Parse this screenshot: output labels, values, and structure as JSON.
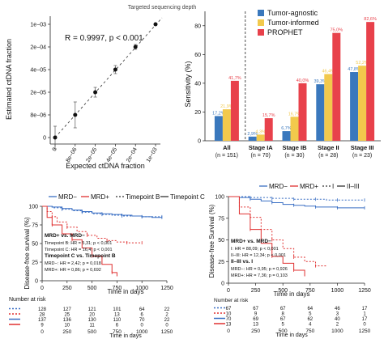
{
  "chart_data": [
    {
      "type": "scatter",
      "top_label": "Targeted sequencing depth",
      "annotation": "R = 0.9997, p < 0.001",
      "xlabel": "Expected ctDNA fraction",
      "ylabel": "Estimated ctDNA fraction",
      "x_ticks": [
        "0",
        "8e−06",
        "2e−05",
        "4e−05",
        "2e−04",
        "1e−03"
      ],
      "y_ticks": [
        "0",
        "8e−06",
        "2e−05",
        "4e−05",
        "2e−04",
        "1e−03"
      ],
      "points": [
        {
          "x": "0",
          "y": "0"
        },
        {
          "x": "8e−06",
          "y": "8e−06"
        },
        {
          "x": "2e−05",
          "y": "2e−05"
        },
        {
          "x": "4e−05",
          "y": "4e−05"
        },
        {
          "x": "2e−04",
          "y": "2e−04"
        },
        {
          "x": "1e−03",
          "y": "1e−03"
        }
      ]
    },
    {
      "type": "bar",
      "ylabel": "Sensitivity (%)",
      "ylim": [
        0,
        90
      ],
      "y_ticks": [
        0,
        20,
        40,
        60,
        80
      ],
      "legend_position": "top-right",
      "categories": [
        {
          "label": "All",
          "n": "(n = 151)"
        },
        {
          "label": "Stage IA",
          "n": "(n = 70)"
        },
        {
          "label": "Stage IB",
          "n": "(n = 30)"
        },
        {
          "label": "Stage II",
          "n": "(n = 28)"
        },
        {
          "label": "Stage III",
          "n": "(n = 23)"
        }
      ],
      "series": [
        {
          "name": "Tumor-agnostic",
          "color": "#3a78bd",
          "values": [
            17.2,
            2.9,
            6.7,
            39.3,
            47.8
          ],
          "labels": [
            "17,2%",
            "2,9%",
            "6,7%",
            "39,3%",
            "47,8%"
          ]
        },
        {
          "name": "Tumor-informed",
          "color": "#f2c94c",
          "values": [
            21.9,
            4.3,
            16.7,
            46.4,
            52.2
          ],
          "labels": [
            "21,9%",
            "4,3%",
            "16,7%",
            "46,4%",
            "52,2%"
          ]
        },
        {
          "name": "PROPHET",
          "color": "#e8414b",
          "values": [
            41.7,
            15.7,
            40.0,
            75.0,
            82.6
          ],
          "labels": [
            "41,7%",
            "15,7%",
            "40,0%",
            "75,0%",
            "82,6%"
          ]
        }
      ]
    },
    {
      "type": "line",
      "legend": [
        {
          "name": "MRD−",
          "color": "#3a6fc4",
          "dash": "solid"
        },
        {
          "name": "MRD+",
          "color": "#e03030",
          "dash": "solid"
        },
        {
          "name": "Timepoint B",
          "color": "#333333",
          "dash": "dotted"
        },
        {
          "name": "Timepoint C",
          "color": "#333333",
          "dash": "solid"
        }
      ],
      "ylabel": "Disease-free survival (%)",
      "xlabel": "Time in days",
      "xlim": [
        0,
        1250
      ],
      "ylim": [
        0,
        100
      ],
      "x_ticks": [
        0,
        250,
        500,
        750,
        1000,
        1250
      ],
      "y_ticks": [
        0,
        25,
        50,
        75,
        100
      ],
      "annotations": [
        {
          "text": "MRD+ vs. MRD−",
          "bold": true
        },
        {
          "text": "Timepoint B: HR = 5,31; p < 0,001",
          "bold": false
        },
        {
          "text": "Timepoint C: HR = 16,4; p < 0,001",
          "bold": false
        },
        {
          "text": "Timepoint C vs. Timepoint B",
          "bold": true
        },
        {
          "text": "MRD−: HR = 2,42; p = 0,018",
          "bold": false
        },
        {
          "text": "MRD+: HR = 0,86; p = 0,692",
          "bold": false
        }
      ],
      "series": [
        {
          "name": "MRD− Timepoint B",
          "color": "#3a6fc4",
          "dash": "dotted",
          "x": [
            0,
            100,
            200,
            300,
            400,
            500,
            600,
            700,
            800,
            900,
            1000,
            1100,
            1200
          ],
          "y": [
            100,
            98,
            96,
            94,
            92,
            90,
            89,
            88,
            87,
            87,
            86,
            86,
            86
          ]
        },
        {
          "name": "MRD− Timepoint C",
          "color": "#3a6fc4",
          "dash": "solid",
          "x": [
            0,
            100,
            200,
            300,
            400,
            500,
            600,
            700,
            800,
            900,
            1000,
            1100,
            1200
          ],
          "y": [
            100,
            99,
            97,
            95,
            93,
            91,
            90,
            89,
            88,
            87,
            86,
            85,
            85
          ]
        },
        {
          "name": "MRD+ Timepoint B",
          "color": "#e03030",
          "dash": "dotted",
          "x": [
            0,
            50,
            100,
            150,
            250,
            350,
            450,
            550,
            650,
            750,
            850,
            950,
            1000
          ],
          "y": [
            100,
            93,
            86,
            79,
            72,
            66,
            61,
            57,
            54,
            52,
            51,
            51,
            51
          ]
        },
        {
          "name": "MRD+ Timepoint C",
          "color": "#e03030",
          "dash": "solid",
          "x": [
            0,
            50,
            100,
            200,
            300,
            400,
            500,
            600,
            700,
            750
          ],
          "y": [
            100,
            85,
            75,
            63,
            55,
            44,
            33,
            22,
            11,
            6
          ]
        }
      ],
      "risk_table": {
        "title": "Number at risk",
        "rows": [
          {
            "color": "#3a6fc4",
            "dash": "dotted",
            "values": [
              "128",
              "127",
              "121",
              "101",
              "64",
              "22"
            ]
          },
          {
            "color": "#e03030",
            "dash": "dotted",
            "values": [
              "28",
              "25",
              "20",
              "13",
              "6",
              "2"
            ]
          },
          {
            "color": "#3a6fc4",
            "dash": "solid",
            "values": [
              "137",
              "136",
              "130",
              "110",
              "70",
              "22"
            ]
          },
          {
            "color": "#e03030",
            "dash": "solid",
            "values": [
              "9",
              "10",
              "11",
              "6",
              "0",
              "0"
            ]
          }
        ],
        "x_ticks": [
          "0",
          "250",
          "500",
          "750",
          "1000",
          "1250"
        ],
        "xlabel": "Time in days"
      }
    },
    {
      "type": "line",
      "legend": [
        {
          "name": "MRD−",
          "color": "#3a6fc4",
          "dash": "solid"
        },
        {
          "name": "MRD+",
          "color": "#e03030",
          "dash": "solid"
        },
        {
          "name": "I",
          "color": "#333333",
          "dash": "dotted"
        },
        {
          "name": "II–III",
          "color": "#333333",
          "dash": "solid"
        }
      ],
      "ylabel": "Disease-free Survival (%)",
      "xlabel": "Time in days",
      "xlim": [
        0,
        1250
      ],
      "ylim": [
        0,
        100
      ],
      "x_ticks": [
        0,
        250,
        500,
        750,
        1000,
        1250
      ],
      "y_ticks": [
        0,
        25,
        50,
        75,
        100
      ],
      "annotations": [
        {
          "text": "MRD+ vs. MRD−",
          "bold": true
        },
        {
          "text": "I: HR = 88,09; p < 0,001",
          "bold": false
        },
        {
          "text": "II–III: HR = 12,34; p < 0,001",
          "bold": false
        },
        {
          "text": "II–III vs. I",
          "bold": true
        },
        {
          "text": "MRD−: HR = 0,95; p = 0,926",
          "bold": false
        },
        {
          "text": "MRD+: HR = 7,36; p = 0,103",
          "bold": false
        }
      ],
      "series": [
        {
          "name": "MRD− I",
          "color": "#3a6fc4",
          "dash": "dotted",
          "x": [
            0,
            100,
            200,
            300,
            400,
            500,
            600,
            700,
            800,
            900,
            1000,
            1100,
            1250
          ],
          "y": [
            100,
            100,
            99,
            99,
            98,
            98,
            97,
            97,
            97,
            96,
            96,
            96,
            96
          ]
        },
        {
          "name": "MRD− II–III",
          "color": "#3a6fc4",
          "dash": "solid",
          "x": [
            0,
            100,
            200,
            300,
            400,
            500,
            600,
            700,
            800,
            900,
            1000,
            1100,
            1250
          ],
          "y": [
            100,
            99,
            97,
            95,
            93,
            91,
            90,
            89,
            88,
            88,
            87,
            87,
            87
          ]
        },
        {
          "name": "MRD+ I",
          "color": "#e03030",
          "dash": "dotted",
          "x": [
            0,
            100,
            200,
            300,
            400,
            500,
            600,
            700,
            800,
            900
          ],
          "y": [
            100,
            88,
            76,
            62,
            50,
            40,
            30,
            25,
            20,
            20
          ]
        },
        {
          "name": "MRD+ II–III",
          "color": "#e03030",
          "dash": "solid",
          "x": [
            0,
            100,
            200,
            300,
            400,
            500,
            600,
            700
          ],
          "y": [
            100,
            80,
            62,
            46,
            31,
            23,
            15,
            8
          ]
        }
      ],
      "risk_table": {
        "title": "Number at risk",
        "rows": [
          {
            "color": "#3a6fc4",
            "dash": "dotted",
            "values": [
              "67",
              "67",
              "67",
              "64",
              "46",
              "17"
            ]
          },
          {
            "color": "#e03030",
            "dash": "dotted",
            "values": [
              "10",
              "9",
              "8",
              "5",
              "3",
              "1"
            ]
          },
          {
            "color": "#3a6fc4",
            "dash": "solid",
            "values": [
              "70",
              "69",
              "67",
              "62",
              "40",
              "17"
            ]
          },
          {
            "color": "#e03030",
            "dash": "solid",
            "values": [
              "13",
              "13",
              "5",
              "4",
              "2",
              "0"
            ]
          }
        ],
        "x_ticks": [
          "0",
          "250",
          "500",
          "750",
          "1000",
          "1250"
        ],
        "xlabel": "Time in days"
      }
    }
  ]
}
